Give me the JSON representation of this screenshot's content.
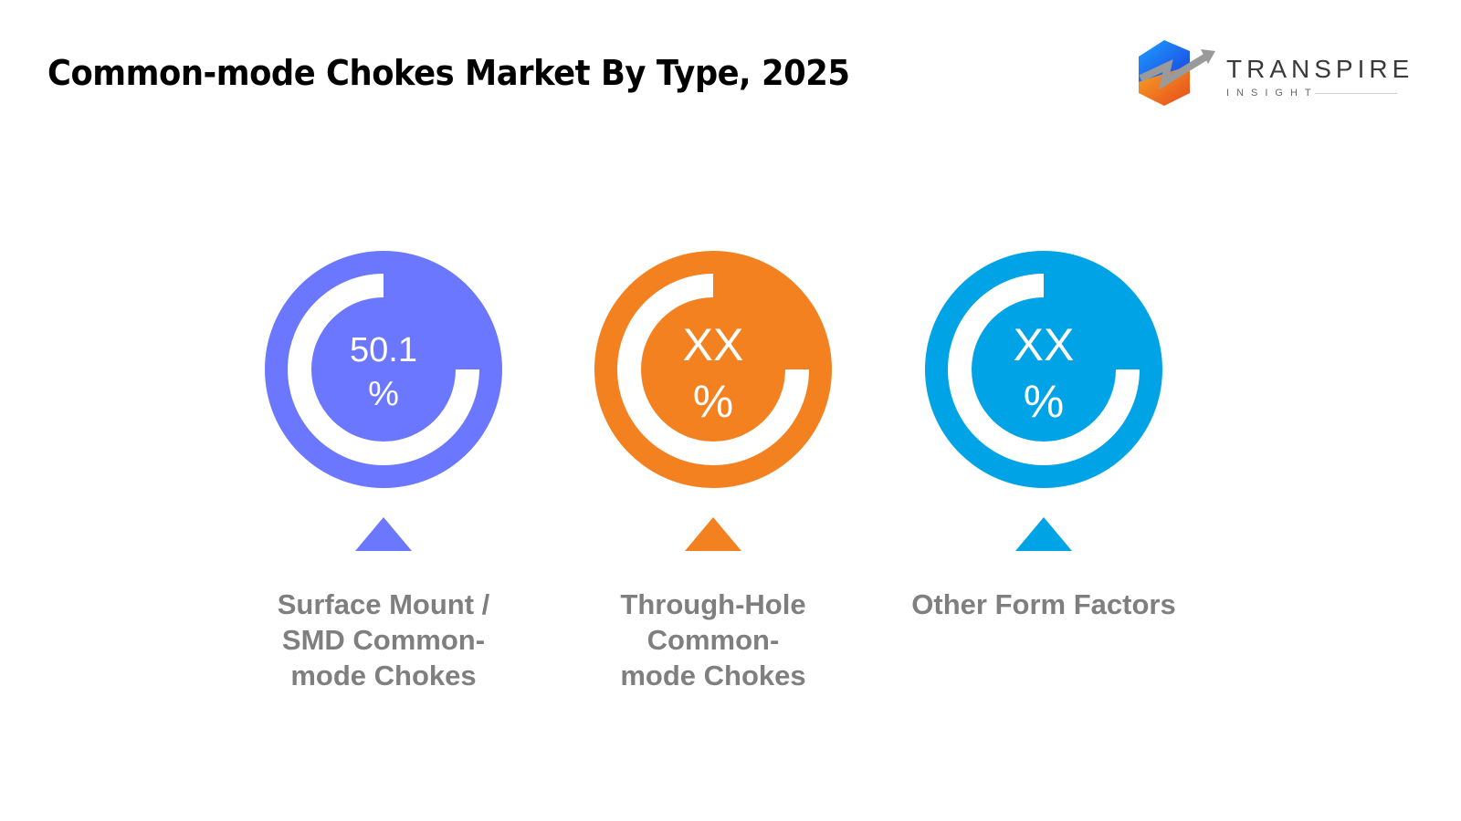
{
  "title": "Common-mode Chokes Market By Type, 2025",
  "logo": {
    "name": "TRANSPIRE",
    "sub": "INSIGHT"
  },
  "chart_data": {
    "type": "donut-infographic",
    "title": "Common-mode Chokes Market By Type, 2025",
    "items": [
      {
        "label": "Surface Mount / SMD Common-mode Chokes",
        "value_text": "50.1",
        "unit": "%",
        "color": "#6B77FF"
      },
      {
        "label": "Through-Hole Common-mode Chokes",
        "value_text": "XX",
        "unit": "%",
        "color": "#F38120"
      },
      {
        "label": "Other Form Factors",
        "value_text": "XX",
        "unit": "%",
        "color": "#00A3E6"
      }
    ]
  }
}
